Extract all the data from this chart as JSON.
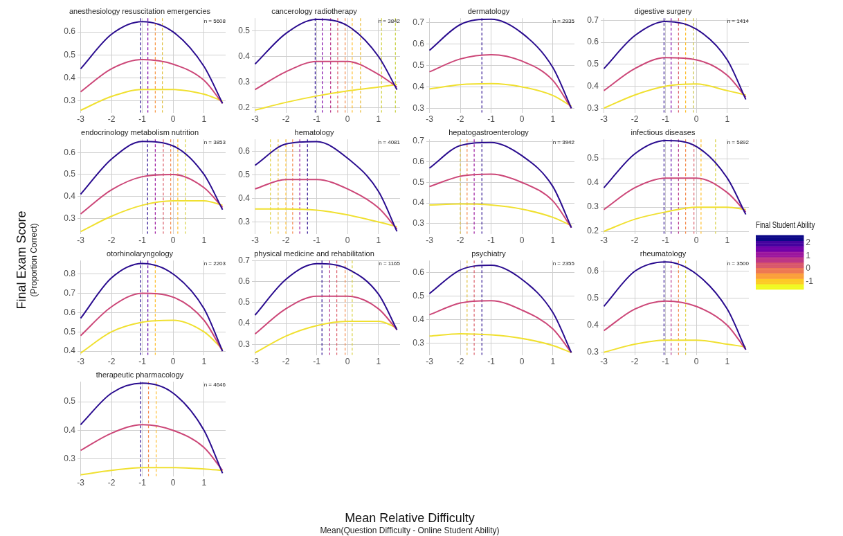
{
  "chart_data": [
    {
      "type": "line",
      "title": "anesthesiology resuscitation emergencies",
      "annotations": [
        "n = 5608"
      ],
      "x": [
        -3,
        -2,
        -1,
        0,
        1,
        1.6
      ],
      "xlim": [
        -3.1,
        1.7
      ],
      "xticks": [
        -3,
        -2,
        -1,
        0,
        1
      ],
      "ylim": [
        0.25,
        0.66
      ],
      "yticks": [
        0.3,
        0.4,
        0.5,
        0.6
      ],
      "grid": true,
      "marker": "none",
      "line_style": "solid",
      "legend": false,
      "series": [
        {
          "color": "#2a0c8f",
          "values": [
            0.44,
            0.59,
            0.645,
            0.6,
            0.45,
            0.29
          ]
        },
        {
          "color": "#cc4778",
          "values": [
            0.34,
            0.44,
            0.48,
            0.46,
            0.39,
            0.29
          ]
        },
        {
          "color": "#f0e030",
          "values": [
            0.26,
            0.32,
            0.35,
            0.35,
            0.33,
            0.3
          ]
        }
      ],
      "ref_lines": [
        {
          "axis": "x",
          "value": -1.05,
          "color": "#2a0c8f",
          "line_style": "dashed"
        },
        {
          "axis": "x",
          "value": -0.82,
          "color": "#7e03a8",
          "line_style": "dashed"
        },
        {
          "axis": "x",
          "value": -0.58,
          "color": "#f89540",
          "line_style": "dashed"
        },
        {
          "axis": "x",
          "value": -0.35,
          "color": "#e0c040",
          "line_style": "dashed"
        }
      ]
    },
    {
      "type": "line",
      "title": "cancerology radiotherapy",
      "annotations": [
        "n = 3842"
      ],
      "x": [
        -3,
        -2,
        -1,
        0,
        1,
        1.6
      ],
      "xlim": [
        -3.1,
        1.7
      ],
      "xticks": [
        -3,
        -2,
        -1,
        0,
        1
      ],
      "ylim": [
        0.18,
        0.55
      ],
      "yticks": [
        0.2,
        0.3,
        0.4,
        0.5
      ],
      "grid": true,
      "marker": "none",
      "line_style": "solid",
      "legend": false,
      "series": [
        {
          "color": "#2a0c8f",
          "values": [
            0.37,
            0.49,
            0.545,
            0.52,
            0.4,
            0.27
          ]
        },
        {
          "color": "#cc4778",
          "values": [
            0.27,
            0.34,
            0.38,
            0.38,
            0.33,
            0.28
          ]
        },
        {
          "color": "#f0e030",
          "values": [
            0.19,
            0.22,
            0.245,
            0.265,
            0.28,
            0.29
          ]
        }
      ],
      "ref_lines": [
        {
          "axis": "x",
          "value": -1.05,
          "color": "#2a0c8f",
          "line_style": "dashed"
        },
        {
          "axis": "x",
          "value": -0.82,
          "color": "#7e03a8",
          "line_style": "dashed"
        },
        {
          "axis": "x",
          "value": -0.55,
          "color": "#b83289",
          "line_style": "dashed"
        },
        {
          "axis": "x",
          "value": -0.32,
          "color": "#db5c68",
          "line_style": "dashed"
        },
        {
          "axis": "x",
          "value": -0.08,
          "color": "#f48849",
          "line_style": "dashed"
        },
        {
          "axis": "x",
          "value": 0.15,
          "color": "#febd2a",
          "line_style": "dashed"
        },
        {
          "axis": "x",
          "value": 0.42,
          "color": "#e8b830",
          "line_style": "dashed"
        },
        {
          "axis": "x",
          "value": 1.1,
          "color": "#d0d040",
          "line_style": "dashed"
        },
        {
          "axis": "x",
          "value": 1.55,
          "color": "#c8d040",
          "line_style": "dashed"
        }
      ]
    },
    {
      "type": "line",
      "title": "dermatology",
      "annotations": [
        "n = 2935"
      ],
      "x": [
        -3,
        -2,
        -1,
        0,
        1,
        1.6
      ],
      "xlim": [
        -3.1,
        1.7
      ],
      "xticks": [
        -3,
        -2,
        -1,
        0,
        1
      ],
      "ylim": [
        0.28,
        0.72
      ],
      "yticks": [
        0.3,
        0.4,
        0.5,
        0.6,
        0.7
      ],
      "grid": true,
      "marker": "none",
      "line_style": "solid",
      "legend": false,
      "series": [
        {
          "color": "#2a0c8f",
          "values": [
            0.57,
            0.69,
            0.715,
            0.65,
            0.49,
            0.3
          ]
        },
        {
          "color": "#cc4778",
          "values": [
            0.47,
            0.53,
            0.55,
            0.52,
            0.43,
            0.3
          ]
        },
        {
          "color": "#f0e030",
          "values": [
            0.39,
            0.41,
            0.415,
            0.4,
            0.36,
            0.31
          ]
        }
      ],
      "ref_lines": [
        {
          "axis": "x",
          "value": -1.3,
          "color": "#2a0c8f",
          "line_style": "dashed"
        }
      ]
    },
    {
      "type": "line",
      "title": "digestive surgery",
      "annotations": [
        "n = 1414"
      ],
      "x": [
        -3,
        -2,
        -1,
        0,
        1,
        1.6
      ],
      "xlim": [
        -3.1,
        1.7
      ],
      "xticks": [
        -3,
        -2,
        -1,
        0,
        1
      ],
      "ylim": [
        0.28,
        0.71
      ],
      "yticks": [
        0.3,
        0.4,
        0.5,
        0.6,
        0.7
      ],
      "grid": true,
      "marker": "none",
      "line_style": "solid",
      "legend": false,
      "series": [
        {
          "color": "#2a0c8f",
          "values": [
            0.48,
            0.63,
            0.695,
            0.66,
            0.52,
            0.34
          ]
        },
        {
          "color": "#cc4778",
          "values": [
            0.38,
            0.48,
            0.53,
            0.52,
            0.45,
            0.35
          ]
        },
        {
          "color": "#f0e030",
          "values": [
            0.3,
            0.36,
            0.4,
            0.41,
            0.38,
            0.36
          ]
        }
      ],
      "ref_lines": [
        {
          "axis": "x",
          "value": -1.05,
          "color": "#2a0c8f",
          "line_style": "dashed"
        },
        {
          "axis": "x",
          "value": -0.82,
          "color": "#7e03a8",
          "line_style": "dashed"
        },
        {
          "axis": "x",
          "value": -0.58,
          "color": "#db5c68",
          "line_style": "dashed"
        },
        {
          "axis": "x",
          "value": -0.35,
          "color": "#febd2a",
          "line_style": "dashed"
        },
        {
          "axis": "x",
          "value": -0.1,
          "color": "#c8c040",
          "line_style": "dashed"
        }
      ]
    },
    {
      "type": "line",
      "title": "endocrinology metabolism nutrition",
      "annotations": [
        "n = 3853"
      ],
      "x": [
        -3,
        -2,
        -1,
        0,
        1,
        1.6
      ],
      "xlim": [
        -3.1,
        1.7
      ],
      "xticks": [
        -3,
        -2,
        -1,
        0,
        1
      ],
      "ylim": [
        0.23,
        0.66
      ],
      "yticks": [
        0.3,
        0.4,
        0.5,
        0.6
      ],
      "grid": true,
      "marker": "none",
      "line_style": "solid",
      "legend": false,
      "series": [
        {
          "color": "#2a0c8f",
          "values": [
            0.41,
            0.57,
            0.65,
            0.63,
            0.5,
            0.34
          ]
        },
        {
          "color": "#cc4778",
          "values": [
            0.32,
            0.43,
            0.49,
            0.5,
            0.44,
            0.35
          ]
        },
        {
          "color": "#f0e030",
          "values": [
            0.24,
            0.31,
            0.36,
            0.38,
            0.38,
            0.36
          ]
        }
      ],
      "ref_lines": [
        {
          "axis": "x",
          "value": -0.83,
          "color": "#2a0c8f",
          "line_style": "dashed"
        },
        {
          "axis": "x",
          "value": -0.58,
          "color": "#9c179e",
          "line_style": "dashed"
        },
        {
          "axis": "x",
          "value": -0.32,
          "color": "#db5c68",
          "line_style": "dashed"
        },
        {
          "axis": "x",
          "value": -0.08,
          "color": "#f48849",
          "line_style": "dashed"
        },
        {
          "axis": "x",
          "value": 0.15,
          "color": "#febd2a",
          "line_style": "dashed"
        },
        {
          "axis": "x",
          "value": 0.4,
          "color": "#d8d040",
          "line_style": "dashed"
        }
      ]
    },
    {
      "type": "line",
      "title": "hematology",
      "annotations": [
        "n = 4081"
      ],
      "x": [
        -3,
        -2,
        -1,
        0,
        1,
        1.6
      ],
      "xlim": [
        -3.1,
        1.7
      ],
      "xticks": [
        -3,
        -2,
        -1,
        0,
        1
      ],
      "ylim": [
        0.25,
        0.65
      ],
      "yticks": [
        0.3,
        0.4,
        0.5,
        0.6
      ],
      "grid": true,
      "marker": "none",
      "line_style": "solid",
      "legend": false,
      "series": [
        {
          "color": "#2a0c8f",
          "values": [
            0.54,
            0.63,
            0.64,
            0.57,
            0.43,
            0.26
          ]
        },
        {
          "color": "#cc4778",
          "values": [
            0.44,
            0.48,
            0.48,
            0.44,
            0.36,
            0.27
          ]
        },
        {
          "color": "#f0e030",
          "values": [
            0.355,
            0.355,
            0.35,
            0.33,
            0.3,
            0.28
          ]
        }
      ],
      "ref_lines": [
        {
          "axis": "x",
          "value": -2.5,
          "color": "#e0d040",
          "line_style": "dashed"
        },
        {
          "axis": "x",
          "value": -2.25,
          "color": "#e8c040",
          "line_style": "dashed"
        },
        {
          "axis": "x",
          "value": -2.0,
          "color": "#febd2a",
          "line_style": "dashed"
        },
        {
          "axis": "x",
          "value": -1.78,
          "color": "#f48849",
          "line_style": "dashed"
        },
        {
          "axis": "x",
          "value": -1.55,
          "color": "#9c179e",
          "line_style": "dashed"
        },
        {
          "axis": "x",
          "value": -1.3,
          "color": "#2a0c8f",
          "line_style": "dashed"
        }
      ]
    },
    {
      "type": "line",
      "title": "hepatogastroenterology",
      "annotations": [
        "n = 3942"
      ],
      "x": [
        -3,
        -2,
        -1,
        0,
        1,
        1.6
      ],
      "xlim": [
        -3.1,
        1.7
      ],
      "xticks": [
        -3,
        -2,
        -1,
        0,
        1
      ],
      "ylim": [
        0.25,
        0.71
      ],
      "yticks": [
        0.3,
        0.4,
        0.5,
        0.6,
        0.7
      ],
      "grid": true,
      "marker": "none",
      "line_style": "solid",
      "legend": false,
      "series": [
        {
          "color": "#2a0c8f",
          "values": [
            0.57,
            0.68,
            0.695,
            0.63,
            0.48,
            0.28
          ]
        },
        {
          "color": "#cc4778",
          "values": [
            0.48,
            0.53,
            0.54,
            0.5,
            0.41,
            0.28
          ]
        },
        {
          "color": "#f0e030",
          "values": [
            0.39,
            0.395,
            0.39,
            0.37,
            0.33,
            0.29
          ]
        }
      ],
      "ref_lines": [
        {
          "axis": "x",
          "value": -2.0,
          "color": "#e0c040",
          "line_style": "dashed"
        },
        {
          "axis": "x",
          "value": -1.78,
          "color": "#f48849",
          "line_style": "dashed"
        },
        {
          "axis": "x",
          "value": -1.55,
          "color": "#9c179e",
          "line_style": "dashed"
        },
        {
          "axis": "x",
          "value": -1.3,
          "color": "#2a0c8f",
          "line_style": "dashed"
        }
      ]
    },
    {
      "type": "line",
      "title": "infectious diseases",
      "annotations": [
        "n = 5892"
      ],
      "clabel": "Final Student Ability",
      "clim": [
        -1.6,
        2.6
      ],
      "cticks": [
        -1,
        0,
        1,
        2
      ],
      "x": [
        -3,
        -2,
        -1,
        0,
        1,
        1.6
      ],
      "xlim": [
        -3.1,
        1.7
      ],
      "xticks": [
        -3,
        -2,
        -1,
        0,
        1
      ],
      "ylim": [
        0.19,
        0.58
      ],
      "yticks": [
        0.2,
        0.3,
        0.4,
        0.5
      ],
      "grid": true,
      "marker": "none",
      "line_style": "solid",
      "legend": false,
      "series": [
        {
          "color": "#2a0c8f",
          "values": [
            0.38,
            0.52,
            0.575,
            0.55,
            0.42,
            0.27
          ]
        },
        {
          "color": "#cc4778",
          "values": [
            0.29,
            0.38,
            0.42,
            0.42,
            0.36,
            0.28
          ]
        },
        {
          "color": "#f0e030",
          "values": [
            0.2,
            0.25,
            0.28,
            0.3,
            0.3,
            0.29
          ]
        }
      ],
      "ref_lines": [
        {
          "axis": "x",
          "value": -1.05,
          "color": "#2a0c8f",
          "line_style": "dashed"
        },
        {
          "axis": "x",
          "value": -0.82,
          "color": "#5c01a6",
          "line_style": "dashed"
        },
        {
          "axis": "x",
          "value": -0.58,
          "color": "#b83289",
          "line_style": "dashed"
        },
        {
          "axis": "x",
          "value": -0.35,
          "color": "#f48849",
          "line_style": "dashed"
        },
        {
          "axis": "x",
          "value": -0.08,
          "color": "#db5c68",
          "line_style": "dashed"
        },
        {
          "axis": "x",
          "value": 0.15,
          "color": "#febd2a",
          "line_style": "dashed"
        },
        {
          "axis": "x",
          "value": 0.62,
          "color": "#d8d040",
          "line_style": "dashed"
        }
      ]
    },
    {
      "type": "line",
      "title": "otorhinolaryngology",
      "annotations": [
        "n = 2203"
      ],
      "x": [
        -3,
        -2,
        -1,
        0,
        1,
        1.6
      ],
      "xlim": [
        -3.1,
        1.7
      ],
      "xticks": [
        -3,
        -2,
        -1,
        0,
        1
      ],
      "ylim": [
        0.38,
        0.87
      ],
      "yticks": [
        0.4,
        0.5,
        0.6,
        0.7,
        0.8
      ],
      "grid": true,
      "marker": "none",
      "line_style": "solid",
      "legend": false,
      "series": [
        {
          "color": "#2a0c8f",
          "values": [
            0.57,
            0.78,
            0.855,
            0.8,
            0.62,
            0.4
          ]
        },
        {
          "color": "#cc4778",
          "values": [
            0.48,
            0.63,
            0.7,
            0.68,
            0.56,
            0.4
          ]
        },
        {
          "color": "#f0e030",
          "values": [
            0.39,
            0.5,
            0.55,
            0.56,
            0.5,
            0.41
          ]
        }
      ],
      "ref_lines": [
        {
          "axis": "x",
          "value": -1.05,
          "color": "#2a0c8f",
          "line_style": "dashed"
        },
        {
          "axis": "x",
          "value": -0.82,
          "color": "#5c01a6",
          "line_style": "dashed"
        },
        {
          "axis": "x",
          "value": -0.58,
          "color": "#febd2a",
          "line_style": "dashed"
        }
      ]
    },
    {
      "type": "line",
      "title": "physical medicine and rehabilitation",
      "annotations": [
        "n = 1165"
      ],
      "x": [
        -3,
        -2,
        -1,
        0,
        1,
        1.6
      ],
      "xlim": [
        -3.1,
        1.7
      ],
      "xticks": [
        -3,
        -2,
        -1,
        0,
        1
      ],
      "ylim": [
        0.25,
        0.7
      ],
      "yticks": [
        0.3,
        0.4,
        0.5,
        0.6,
        0.7
      ],
      "grid": true,
      "marker": "none",
      "line_style": "solid",
      "legend": false,
      "series": [
        {
          "color": "#2a0c8f",
          "values": [
            0.44,
            0.61,
            0.685,
            0.66,
            0.54,
            0.37
          ]
        },
        {
          "color": "#cc4778",
          "values": [
            0.35,
            0.47,
            0.53,
            0.53,
            0.47,
            0.37
          ]
        },
        {
          "color": "#f0e030",
          "values": [
            0.26,
            0.34,
            0.39,
            0.41,
            0.41,
            0.38
          ]
        }
      ],
      "ref_lines": [
        {
          "axis": "x",
          "value": -0.83,
          "color": "#2a0c8f",
          "line_style": "dashed"
        },
        {
          "axis": "x",
          "value": -0.58,
          "color": "#b83289",
          "line_style": "dashed"
        },
        {
          "axis": "x",
          "value": -0.35,
          "color": "#db5c68",
          "line_style": "dashed"
        },
        {
          "axis": "x",
          "value": -0.08,
          "color": "#f48849",
          "line_style": "dashed"
        },
        {
          "axis": "x",
          "value": 0.15,
          "color": "#d8d040",
          "line_style": "dashed"
        }
      ]
    },
    {
      "type": "line",
      "title": "psychiatry",
      "annotations": [
        "n = 2355"
      ],
      "x": [
        -3,
        -2,
        -1,
        0,
        1,
        1.6
      ],
      "xlim": [
        -3.1,
        1.7
      ],
      "xticks": [
        -3,
        -2,
        -1,
        0,
        1
      ],
      "ylim": [
        0.25,
        0.65
      ],
      "yticks": [
        0.3,
        0.4,
        0.5,
        0.6
      ],
      "grid": true,
      "marker": "none",
      "line_style": "solid",
      "legend": false,
      "series": [
        {
          "color": "#2a0c8f",
          "values": [
            0.51,
            0.61,
            0.63,
            0.57,
            0.43,
            0.26
          ]
        },
        {
          "color": "#cc4778",
          "values": [
            0.42,
            0.47,
            0.48,
            0.44,
            0.36,
            0.26
          ]
        },
        {
          "color": "#f0e030",
          "values": [
            0.33,
            0.34,
            0.335,
            0.32,
            0.29,
            0.26
          ]
        }
      ],
      "ref_lines": [
        {
          "axis": "x",
          "value": -1.78,
          "color": "#e0c040",
          "line_style": "dashed"
        },
        {
          "axis": "x",
          "value": -1.55,
          "color": "#db5c68",
          "line_style": "dashed"
        },
        {
          "axis": "x",
          "value": -1.3,
          "color": "#2a0c8f",
          "line_style": "dashed"
        }
      ]
    },
    {
      "type": "line",
      "title": "rheumatology",
      "annotations": [
        "n = 3500"
      ],
      "x": [
        -3,
        -2,
        -1,
        0,
        1,
        1.6
      ],
      "xlim": [
        -3.1,
        1.7
      ],
      "xticks": [
        -3,
        -2,
        -1,
        0,
        1
      ],
      "ylim": [
        0.29,
        0.64
      ],
      "yticks": [
        0.3,
        0.4,
        0.5,
        0.6
      ],
      "grid": true,
      "marker": "none",
      "line_style": "solid",
      "legend": false,
      "series": [
        {
          "color": "#2a0c8f",
          "values": [
            0.47,
            0.6,
            0.635,
            0.59,
            0.46,
            0.31
          ]
        },
        {
          "color": "#cc4778",
          "values": [
            0.38,
            0.46,
            0.49,
            0.47,
            0.4,
            0.31
          ]
        },
        {
          "color": "#f0e030",
          "values": [
            0.3,
            0.33,
            0.345,
            0.345,
            0.33,
            0.32
          ]
        }
      ],
      "ref_lines": [
        {
          "axis": "x",
          "value": -1.05,
          "color": "#2a0c8f",
          "line_style": "dashed"
        },
        {
          "axis": "x",
          "value": -0.82,
          "color": "#b83289",
          "line_style": "dashed"
        },
        {
          "axis": "x",
          "value": -0.58,
          "color": "#f48849",
          "line_style": "dashed"
        },
        {
          "axis": "x",
          "value": -0.35,
          "color": "#e0d040",
          "line_style": "dashed"
        }
      ]
    },
    {
      "type": "line",
      "title": "therapeutic pharmacology",
      "annotations": [
        "n = 4646"
      ],
      "x": [
        -3,
        -2,
        -1,
        0,
        1,
        1.6
      ],
      "xlim": [
        -3.1,
        1.7
      ],
      "xticks": [
        -3,
        -2,
        -1,
        0,
        1
      ],
      "ylim": [
        0.24,
        0.57
      ],
      "yticks": [
        0.3,
        0.4,
        0.5
      ],
      "grid": true,
      "marker": "none",
      "line_style": "solid",
      "legend": false,
      "series": [
        {
          "color": "#2a0c8f",
          "values": [
            0.42,
            0.53,
            0.565,
            0.53,
            0.4,
            0.25
          ]
        },
        {
          "color": "#cc4778",
          "values": [
            0.33,
            0.39,
            0.42,
            0.4,
            0.34,
            0.26
          ]
        },
        {
          "color": "#f0e030",
          "values": [
            0.245,
            0.26,
            0.27,
            0.27,
            0.265,
            0.26
          ]
        }
      ],
      "ref_lines": [
        {
          "axis": "x",
          "value": -1.05,
          "color": "#2a0c8f",
          "line_style": "dashed"
        },
        {
          "axis": "x",
          "value": -0.8,
          "color": "#f48849",
          "line_style": "dashed"
        },
        {
          "axis": "x",
          "value": -0.55,
          "color": "#febd2a",
          "line_style": "dashed"
        }
      ]
    },
    {
      "type": "other",
      "xlabel": "Mean Relative Difficulty",
      "ylabel": "Final Exam Score",
      "annotations": [
        "Mean(Question Difficulty - Online Student Ability)",
        "(Proportion Correct)"
      ]
    }
  ]
}
